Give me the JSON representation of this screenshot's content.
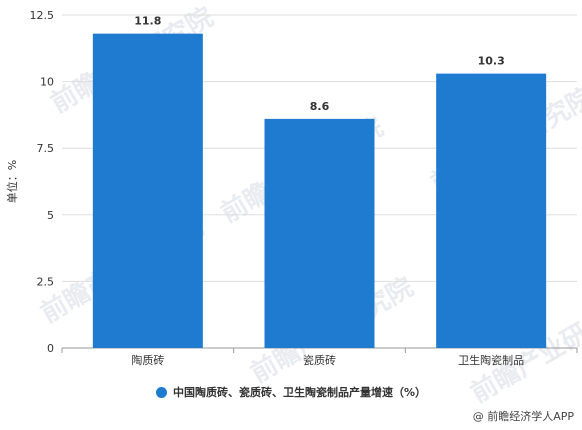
{
  "chart_data": {
    "type": "bar",
    "categories": [
      "陶质砖",
      "瓷质砖",
      "卫生陶瓷制品"
    ],
    "values": [
      11.8,
      8.6,
      10.3
    ],
    "value_labels": [
      "11.8",
      "8.6",
      "10.3"
    ],
    "ylabel": "单位：%",
    "ylim": [
      0,
      12.5
    ],
    "yticks": [
      "0",
      "2.5",
      "5",
      "7.5",
      "10",
      "12.5"
    ],
    "grid": true,
    "legend_position": "bottom",
    "series": [
      {
        "name": "中国陶质砖、瓷质砖、卫生陶瓷制品产量增速（%）",
        "values": [
          11.8,
          8.6,
          10.3
        ]
      }
    ]
  },
  "colors": {
    "bar": "#1f7bcf",
    "grid": "#dddddd",
    "axis": "#999999",
    "text": "#333333"
  },
  "legend": {
    "label": "中国陶质砖、瓷质砖、卫生陶瓷制品产量增速（%）",
    "marker_icon": "legend-dot-icon"
  },
  "credit": {
    "text": "@ 前瞻经济学人APP"
  },
  "watermark": {
    "text": "前瞻产业研究院"
  }
}
